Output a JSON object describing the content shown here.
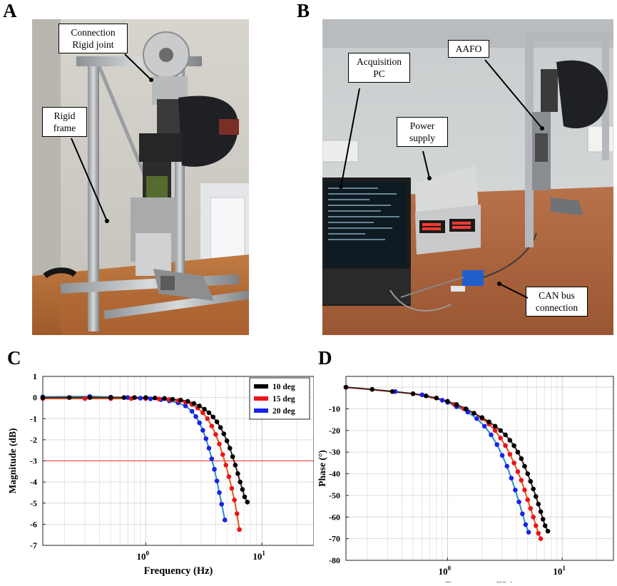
{
  "panels": {
    "A": {
      "letter": "A",
      "callouts": [
        {
          "line1": "Connection",
          "line2": "Rigid joint"
        },
        {
          "line1": "Rigid",
          "line2": "frame"
        }
      ]
    },
    "B": {
      "letter": "B",
      "callouts": [
        {
          "line1": "Acquisition",
          "line2": "PC"
        },
        {
          "line1": "Power",
          "line2": "supply"
        },
        {
          "line1": "AAFO",
          "line2": ""
        },
        {
          "line1": "CAN bus",
          "line2": "connection"
        }
      ]
    },
    "C": {
      "letter": "C"
    },
    "D": {
      "letter": "D"
    }
  },
  "chart_data": [
    {
      "type": "line",
      "panel": "C",
      "xlabel": "Frequency (Hz)",
      "ylabel": "Magnitude (dB)",
      "x_scale": "log",
      "xlim": [
        0.13,
        28
      ],
      "ylim": [
        -7,
        1
      ],
      "x_ticks": [
        {
          "value": 1,
          "base": "10",
          "exp": "0"
        },
        {
          "value": 10,
          "base": "10",
          "exp": "1"
        }
      ],
      "y_ticks": [
        "1",
        "0",
        "-1",
        "-2",
        "-3",
        "-4",
        "-5",
        "-6",
        "-7"
      ],
      "grid": true,
      "legend_position": "top-right",
      "reference_line": {
        "y": -3,
        "color": "#e53030"
      },
      "series": [
        {
          "name": "10 deg",
          "marker_color": "#000000",
          "line_color": "#4a2222",
          "x": [
            0.13,
            0.22,
            0.33,
            0.5,
            0.65,
            0.8,
            1.0,
            1.2,
            1.45,
            1.7,
            2.0,
            2.3,
            2.6,
            2.9,
            3.2,
            3.5,
            3.8,
            4.1,
            4.4,
            4.7,
            5.0,
            5.3,
            5.6,
            5.9,
            6.2,
            6.5,
            6.8,
            7.1,
            7.5
          ],
          "y": [
            0,
            0,
            0,
            0,
            0,
            0,
            0,
            -0.02,
            -0.04,
            -0.08,
            -0.12,
            -0.18,
            -0.28,
            -0.4,
            -0.55,
            -0.72,
            -0.92,
            -1.15,
            -1.42,
            -1.72,
            -2.05,
            -2.4,
            -2.8,
            -3.2,
            -3.6,
            -4.0,
            -4.35,
            -4.7,
            -4.95
          ]
        },
        {
          "name": "15 deg",
          "marker_color": "#e8161a",
          "line_color": "#e05a18",
          "x": [
            0.13,
            0.3,
            0.5,
            0.75,
            1.0,
            1.3,
            1.6,
            1.9,
            2.2,
            2.5,
            2.8,
            3.1,
            3.4,
            3.7,
            4.0,
            4.3,
            4.6,
            4.9,
            5.2,
            5.5,
            5.8,
            6.1,
            6.4
          ],
          "y": [
            -0.05,
            -0.05,
            -0.05,
            -0.05,
            -0.05,
            -0.07,
            -0.1,
            -0.15,
            -0.22,
            -0.33,
            -0.5,
            -0.72,
            -1.0,
            -1.35,
            -1.75,
            -2.2,
            -2.7,
            -3.2,
            -3.75,
            -4.3,
            -4.85,
            -5.5,
            -6.25
          ]
        },
        {
          "name": "20 deg",
          "marker_color": "#1a22e8",
          "line_color": "#2a8ec8",
          "x": [
            0.13,
            0.33,
            0.5,
            0.7,
            0.9,
            1.1,
            1.35,
            1.6,
            1.9,
            2.2,
            2.5,
            2.7,
            2.9,
            3.1,
            3.3,
            3.5,
            3.7,
            3.9,
            4.1,
            4.3,
            4.5,
            4.8
          ],
          "y": [
            0.03,
            0.05,
            0.02,
            0,
            -0.03,
            -0.06,
            -0.1,
            -0.16,
            -0.25,
            -0.4,
            -0.65,
            -0.9,
            -1.2,
            -1.55,
            -1.95,
            -2.4,
            -2.9,
            -3.4,
            -3.95,
            -4.5,
            -5.05,
            -5.8
          ]
        }
      ]
    },
    {
      "type": "line",
      "panel": "D",
      "xlabel": "Frequency (Hz)",
      "ylabel": "Phase (°)",
      "x_scale": "log",
      "xlim": [
        0.13,
        28
      ],
      "ylim": [
        -80,
        5
      ],
      "x_ticks": [
        {
          "value": 1,
          "base": "10",
          "exp": "0"
        },
        {
          "value": 10,
          "base": "10",
          "exp": "1"
        }
      ],
      "y_ticks": [
        "-10",
        "-20",
        "-30",
        "-40",
        "-50",
        "-60",
        "-70",
        "-80"
      ],
      "grid": true,
      "series": [
        {
          "name": "10 deg",
          "marker_color": "#000000",
          "line_color": "#4a2222",
          "x": [
            0.13,
            0.22,
            0.33,
            0.5,
            0.65,
            0.8,
            1.0,
            1.2,
            1.45,
            1.7,
            2.0,
            2.3,
            2.6,
            2.9,
            3.2,
            3.5,
            3.8,
            4.1,
            4.4,
            4.7,
            5.0,
            5.3,
            5.6,
            5.9,
            6.2,
            6.5,
            6.8,
            7.1,
            7.5
          ],
          "y": [
            0,
            -1,
            -2,
            -3,
            -4,
            -5,
            -6.5,
            -8,
            -10,
            -12,
            -14,
            -16,
            -18,
            -20,
            -22,
            -24.5,
            -27,
            -30,
            -33,
            -36.5,
            -40,
            -43.5,
            -47,
            -50.5,
            -54,
            -57.5,
            -61,
            -64,
            -66.5
          ]
        },
        {
          "name": "15 deg",
          "marker_color": "#e8161a",
          "line_color": "#e05a18",
          "x": [
            0.13,
            0.5,
            1.0,
            1.15,
            1.4,
            1.7,
            2.0,
            2.3,
            2.6,
            2.9,
            3.2,
            3.5,
            3.8,
            4.1,
            4.4,
            4.7,
            5.0,
            5.3,
            5.6,
            5.9,
            6.2,
            6.5
          ],
          "y": [
            0,
            -3,
            -6.5,
            -8,
            -10,
            -12,
            -14.5,
            -17,
            -20,
            -23.5,
            -27,
            -31,
            -35,
            -39,
            -43,
            -47.5,
            -52,
            -56,
            -60,
            -64,
            -67.5,
            -70
          ]
        },
        {
          "name": "20 deg",
          "marker_color": "#1a22e8",
          "line_color": "#2a8ec8",
          "x": [
            0.13,
            0.35,
            0.6,
            0.9,
            1.0,
            1.2,
            1.5,
            1.8,
            2.1,
            2.4,
            2.7,
            3.0,
            3.3,
            3.6,
            3.9,
            4.2,
            4.5,
            4.8,
            5.1
          ],
          "y": [
            0,
            -2,
            -3.5,
            -6,
            -7,
            -9,
            -11.5,
            -14.5,
            -18,
            -22,
            -26.5,
            -31.5,
            -36.5,
            -42,
            -47.5,
            -53,
            -58.5,
            -63.5,
            -67
          ]
        }
      ]
    }
  ]
}
